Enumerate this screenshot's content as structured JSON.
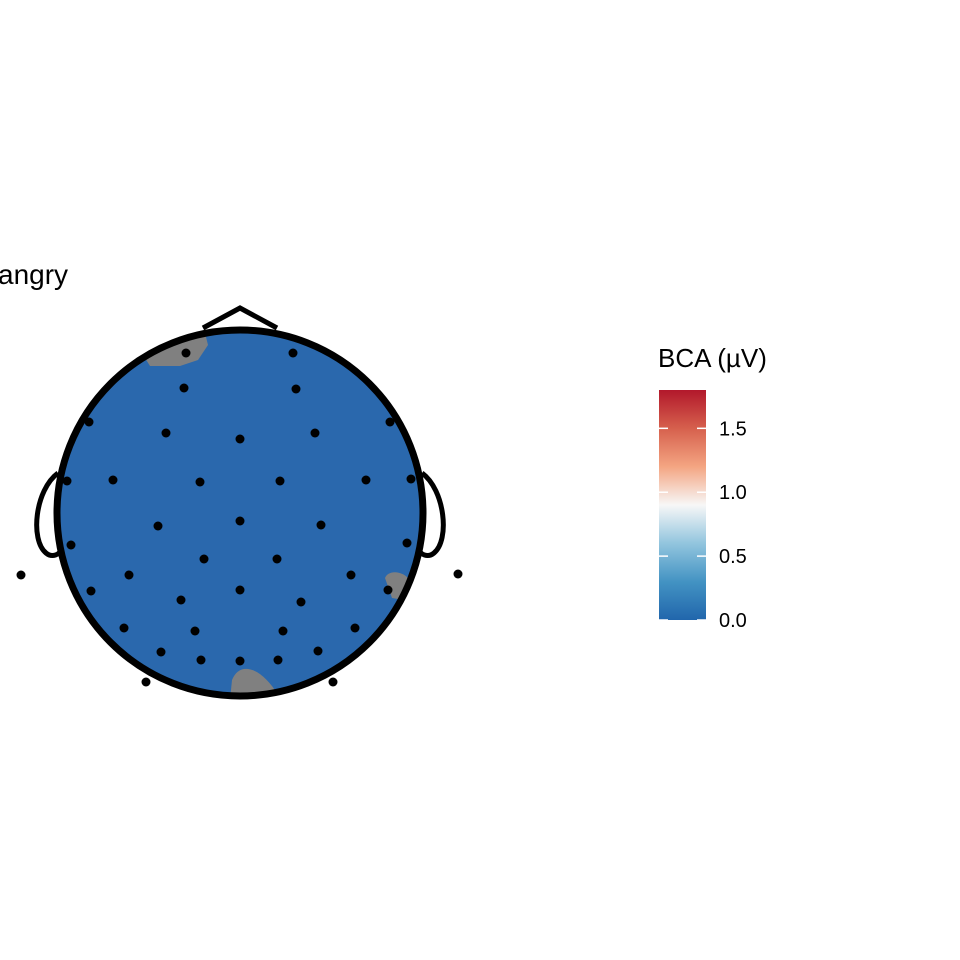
{
  "chart_data": {
    "type": "heatmap",
    "subtype": "scalp-topography",
    "title": "angry",
    "legend": {
      "title": "BCA (µV)",
      "ticks": [
        {
          "value": 0.0,
          "label": "0.0"
        },
        {
          "value": 0.5,
          "label": "0.5"
        },
        {
          "value": 1.0,
          "label": "1.0"
        },
        {
          "value": 1.5,
          "label": "1.5"
        }
      ],
      "range": [
        0.0,
        1.8
      ],
      "palette": [
        "#2166ac",
        "#4393c3",
        "#92c5de",
        "#f7f7f7",
        "#f4a582",
        "#d6604d",
        "#b2182b"
      ],
      "placement": "right"
    },
    "fill_value_range": [
      0.0,
      0.05
    ],
    "fill_color": "#2a68ad",
    "masked_color": "#808080",
    "outline_color": "#000000",
    "electrodes_visible": true
  }
}
